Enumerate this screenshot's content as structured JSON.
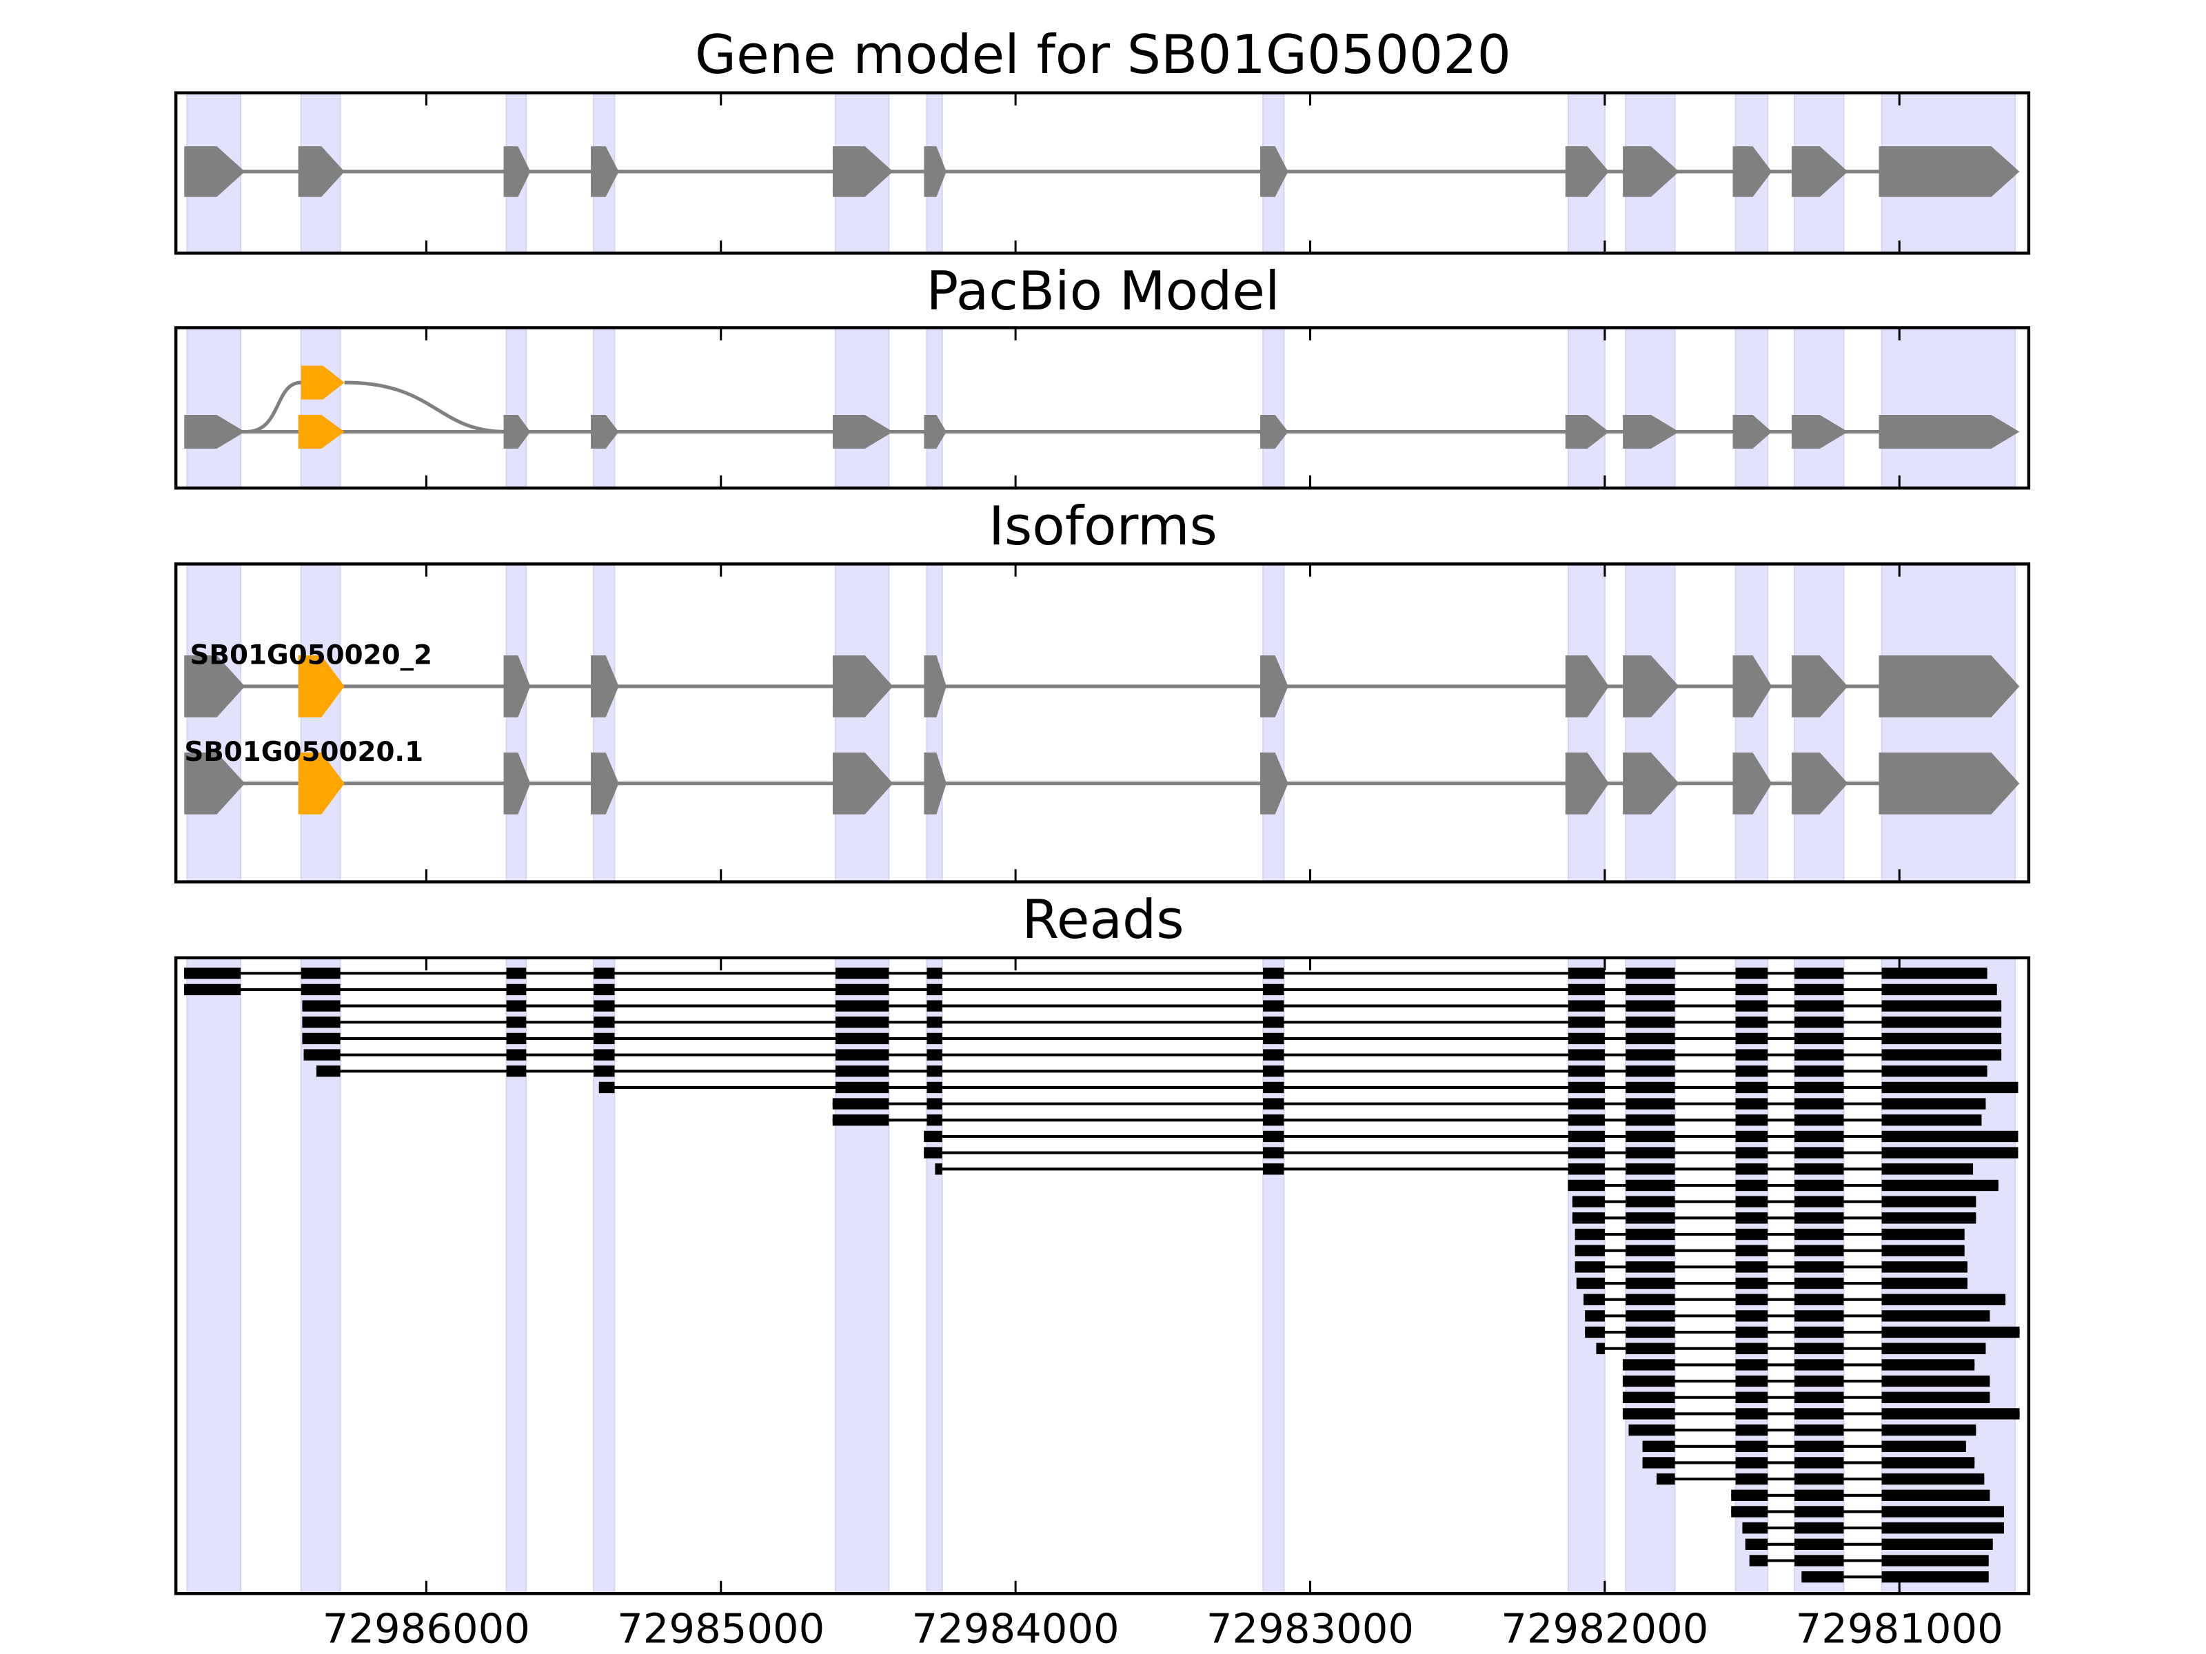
{
  "chart_data": {
    "type": "gene-model",
    "xlim": [
      72986850,
      72980561
    ],
    "xticks": [
      72986000,
      72985000,
      72984000,
      72983000,
      72982000,
      72981000
    ],
    "xtick_labels": [
      "72986000",
      "72985000",
      "72984000",
      "72983000",
      "72982000",
      "72981000"
    ],
    "colors": {
      "exon": "#808080",
      "highlight": "#ffa500",
      "shade": "#e2e2fc",
      "read": "#000000"
    },
    "exons": [
      [
        72986812,
        72986630
      ],
      [
        72986425,
        72986292
      ],
      [
        72985728,
        72985661
      ],
      [
        72985432,
        72985361
      ],
      [
        72984611,
        72984430
      ],
      [
        72984301,
        72984249
      ],
      [
        72983160,
        72983089
      ],
      [
        72982124,
        72982000
      ],
      [
        72981929,
        72981762
      ],
      [
        72981556,
        72981447
      ],
      [
        72981356,
        72981189
      ],
      [
        72981060,
        72980607
      ]
    ],
    "highlight_exon_index": 1,
    "panels": [
      {
        "title": "Gene model for SB01G050020"
      },
      {
        "title": "PacBio Model"
      },
      {
        "title": "Isoforms",
        "isoforms": [
          "SB01G050020_2",
          "SB01G050020.1"
        ]
      },
      {
        "title": "Reads"
      }
    ],
    "reads": [
      [
        72986822,
        72980702
      ],
      [
        72986822,
        72980669
      ],
      [
        72986421,
        72980654
      ],
      [
        72986421,
        72980654
      ],
      [
        72986421,
        72980654
      ],
      [
        72986416,
        72980654
      ],
      [
        72986373,
        72980702
      ],
      [
        72985414,
        72980597
      ],
      [
        72984621,
        72980707
      ],
      [
        72984621,
        72980721
      ],
      [
        72984311,
        72980597
      ],
      [
        72984311,
        72980597
      ],
      [
        72984273,
        72980750
      ],
      [
        72982125,
        72980664
      ],
      [
        72982110,
        72980740
      ],
      [
        72982110,
        72980740
      ],
      [
        72982101,
        72980779
      ],
      [
        72982101,
        72980779
      ],
      [
        72982101,
        72980769
      ],
      [
        72982096,
        72980769
      ],
      [
        72982072,
        72980640
      ],
      [
        72982067,
        72980693
      ],
      [
        72982067,
        72980592
      ],
      [
        72982029,
        72980707
      ],
      [
        72981939,
        72980745
      ],
      [
        72981939,
        72980693
      ],
      [
        72981939,
        72980693
      ],
      [
        72981939,
        72980592
      ],
      [
        72981919,
        72980740
      ],
      [
        72981872,
        72980774
      ],
      [
        72981872,
        72980745
      ],
      [
        72981824,
        72980712
      ],
      [
        72981571,
        72980693
      ],
      [
        72981571,
        72980645
      ],
      [
        72981533,
        72980645
      ],
      [
        72981523,
        72980683
      ],
      [
        72981509,
        72980697
      ],
      [
        72981332,
        72980697
      ]
    ]
  }
}
